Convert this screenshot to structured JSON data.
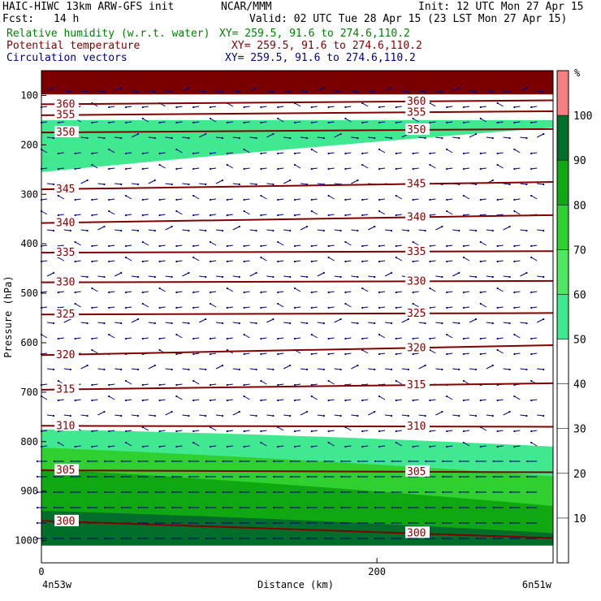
{
  "header": {
    "model": "HAIC-HIWC 13km ARW-GFS init",
    "org": "NCAR/MMM",
    "init": "Init: 12 UTC Mon 27 Apr 15",
    "fcst_label": "Fcst:",
    "fcst_value": "14 h",
    "valid": "Valid: 02 UTC Tue 28 Apr 15 (23 LST Mon 27 Apr 15)",
    "fields": [
      {
        "name": "Relative humidity (w.r.t. water)",
        "xy": "XY= 259.5, 91.6 to 274.6,110.2",
        "color": "#008000"
      },
      {
        "name": "Potential temperature",
        "xy": "XY= 259.5, 91.6 to 274.6,110.2",
        "color": "#800000"
      },
      {
        "name": "Circulation vectors",
        "xy": "XY= 259.5, 91.6 to 274.6,110.2",
        "color": "#000080"
      }
    ]
  },
  "chart_data": {
    "type": "cross-section",
    "ylabel": "Pressure (hPa)",
    "xlabel": "Distance (km)",
    "x_ticks": [
      0,
      200
    ],
    "y_ticks": [
      100,
      200,
      300,
      400,
      500,
      600,
      700,
      800,
      900,
      1000
    ],
    "y_scale": "linear, inverted",
    "ylim": [
      1045,
      50
    ],
    "xlim": [
      0,
      305
    ],
    "left_endpoint": "4n53w",
    "right_endpoint": "6n51w",
    "colorbar": {
      "unit": "%",
      "ticks": [
        10,
        20,
        30,
        40,
        50,
        60,
        70,
        80,
        90,
        100
      ],
      "bins": [
        {
          "from": 50,
          "to": 60,
          "color": "#40e890"
        },
        {
          "from": 60,
          "to": 70,
          "color": "#50e860"
        },
        {
          "from": 70,
          "to": 80,
          "color": "#30d030"
        },
        {
          "from": 80,
          "to": 90,
          "color": "#10a810"
        },
        {
          "from": 90,
          "to": 100,
          "color": "#006e2a"
        },
        {
          "from": 100,
          "to": 110,
          "color": "#f48080"
        }
      ]
    },
    "theta_contours": [
      {
        "value": 300,
        "left_p": 960,
        "right_p": 995,
        "label": "300"
      },
      {
        "value": 305,
        "left_p": 858,
        "right_p": 862,
        "label": "305"
      },
      {
        "value": 310,
        "left_p": 768,
        "right_p": 770,
        "label": "310"
      },
      {
        "value": 315,
        "left_p": 695,
        "right_p": 682,
        "label": "315"
      },
      {
        "value": 320,
        "left_p": 625,
        "right_p": 605,
        "label": "320"
      },
      {
        "value": 325,
        "left_p": 543,
        "right_p": 540,
        "label": "325"
      },
      {
        "value": 330,
        "left_p": 478,
        "right_p": 475,
        "label": "330"
      },
      {
        "value": 335,
        "left_p": 418,
        "right_p": 415,
        "label": "335"
      },
      {
        "value": 340,
        "left_p": 358,
        "right_p": 342,
        "label": "340"
      },
      {
        "value": 345,
        "left_p": 290,
        "right_p": 275,
        "label": "345"
      },
      {
        "value": 350,
        "left_p": 175,
        "right_p": 168,
        "label": "350"
      },
      {
        "value": 355,
        "left_p": 140,
        "right_p": 132,
        "label": "355"
      },
      {
        "value": 360,
        "left_p": 118,
        "right_p": 110,
        "label": "360"
      }
    ],
    "rh_regions": [
      {
        "name": "upper-moist-layer",
        "rh": "50-60",
        "top_p": 150,
        "bottom_left_p": 255,
        "bottom_right_p": 165
      },
      {
        "name": "top-saturated",
        "rh": ">100",
        "top_p": 50,
        "bottom_p": 98
      },
      {
        "name": "low-moist-layer",
        "rh": "50-60",
        "top_left_p": 775,
        "top_right_p": 810,
        "bottom_p": 1010
      },
      {
        "name": "low-70-layer",
        "rh": "70-80",
        "top_left_p": 812,
        "top_right_p": 870,
        "bottom_p": 1010
      },
      {
        "name": "low-80-layer",
        "rh": "80-90",
        "top_left_p": 855,
        "top_right_p": 930,
        "bottom_p": 1010
      },
      {
        "name": "low-90-layer",
        "rh": "90-100",
        "top_left_p": 940,
        "top_right_p": 985,
        "bottom_p": 1010
      }
    ]
  }
}
